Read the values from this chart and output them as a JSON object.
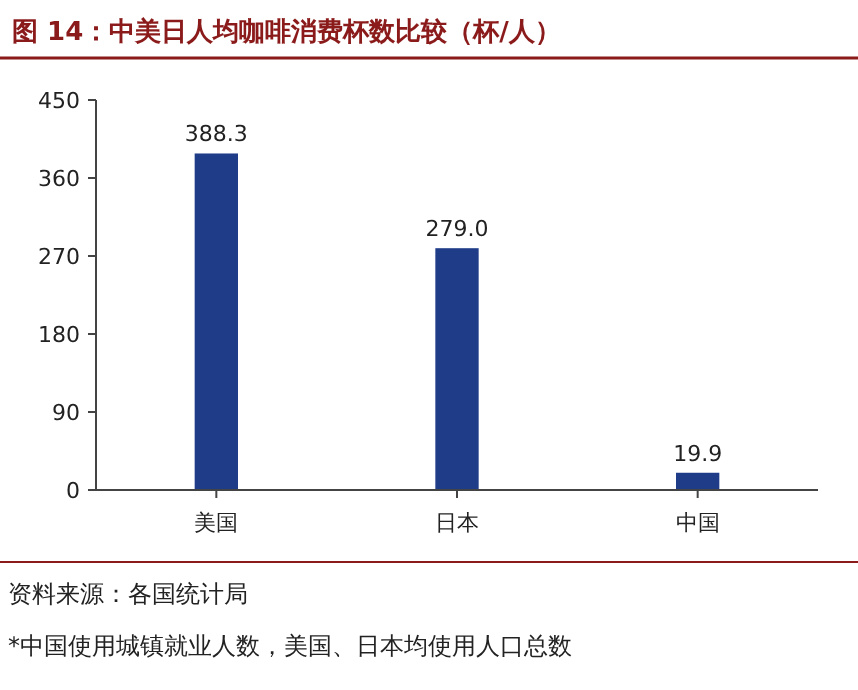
{
  "chart_data": {
    "type": "bar",
    "title": "图 14：中美日人均咖啡消费杯数比较（杯/人）",
    "categories": [
      "美国",
      "日本",
      "中国"
    ],
    "values": [
      388.3,
      279.0,
      19.9
    ],
    "value_labels": [
      "388.3",
      "279.0",
      "19.9"
    ],
    "color": "#1f3c88",
    "ylim": [
      0,
      450
    ],
    "yticks": [
      0,
      90,
      180,
      270,
      360,
      450
    ],
    "grid": false,
    "annotations": [
      "资料来源：各国统计局",
      "*中国使用城镇就业人数，美国、日本均使用人口总数"
    ]
  }
}
